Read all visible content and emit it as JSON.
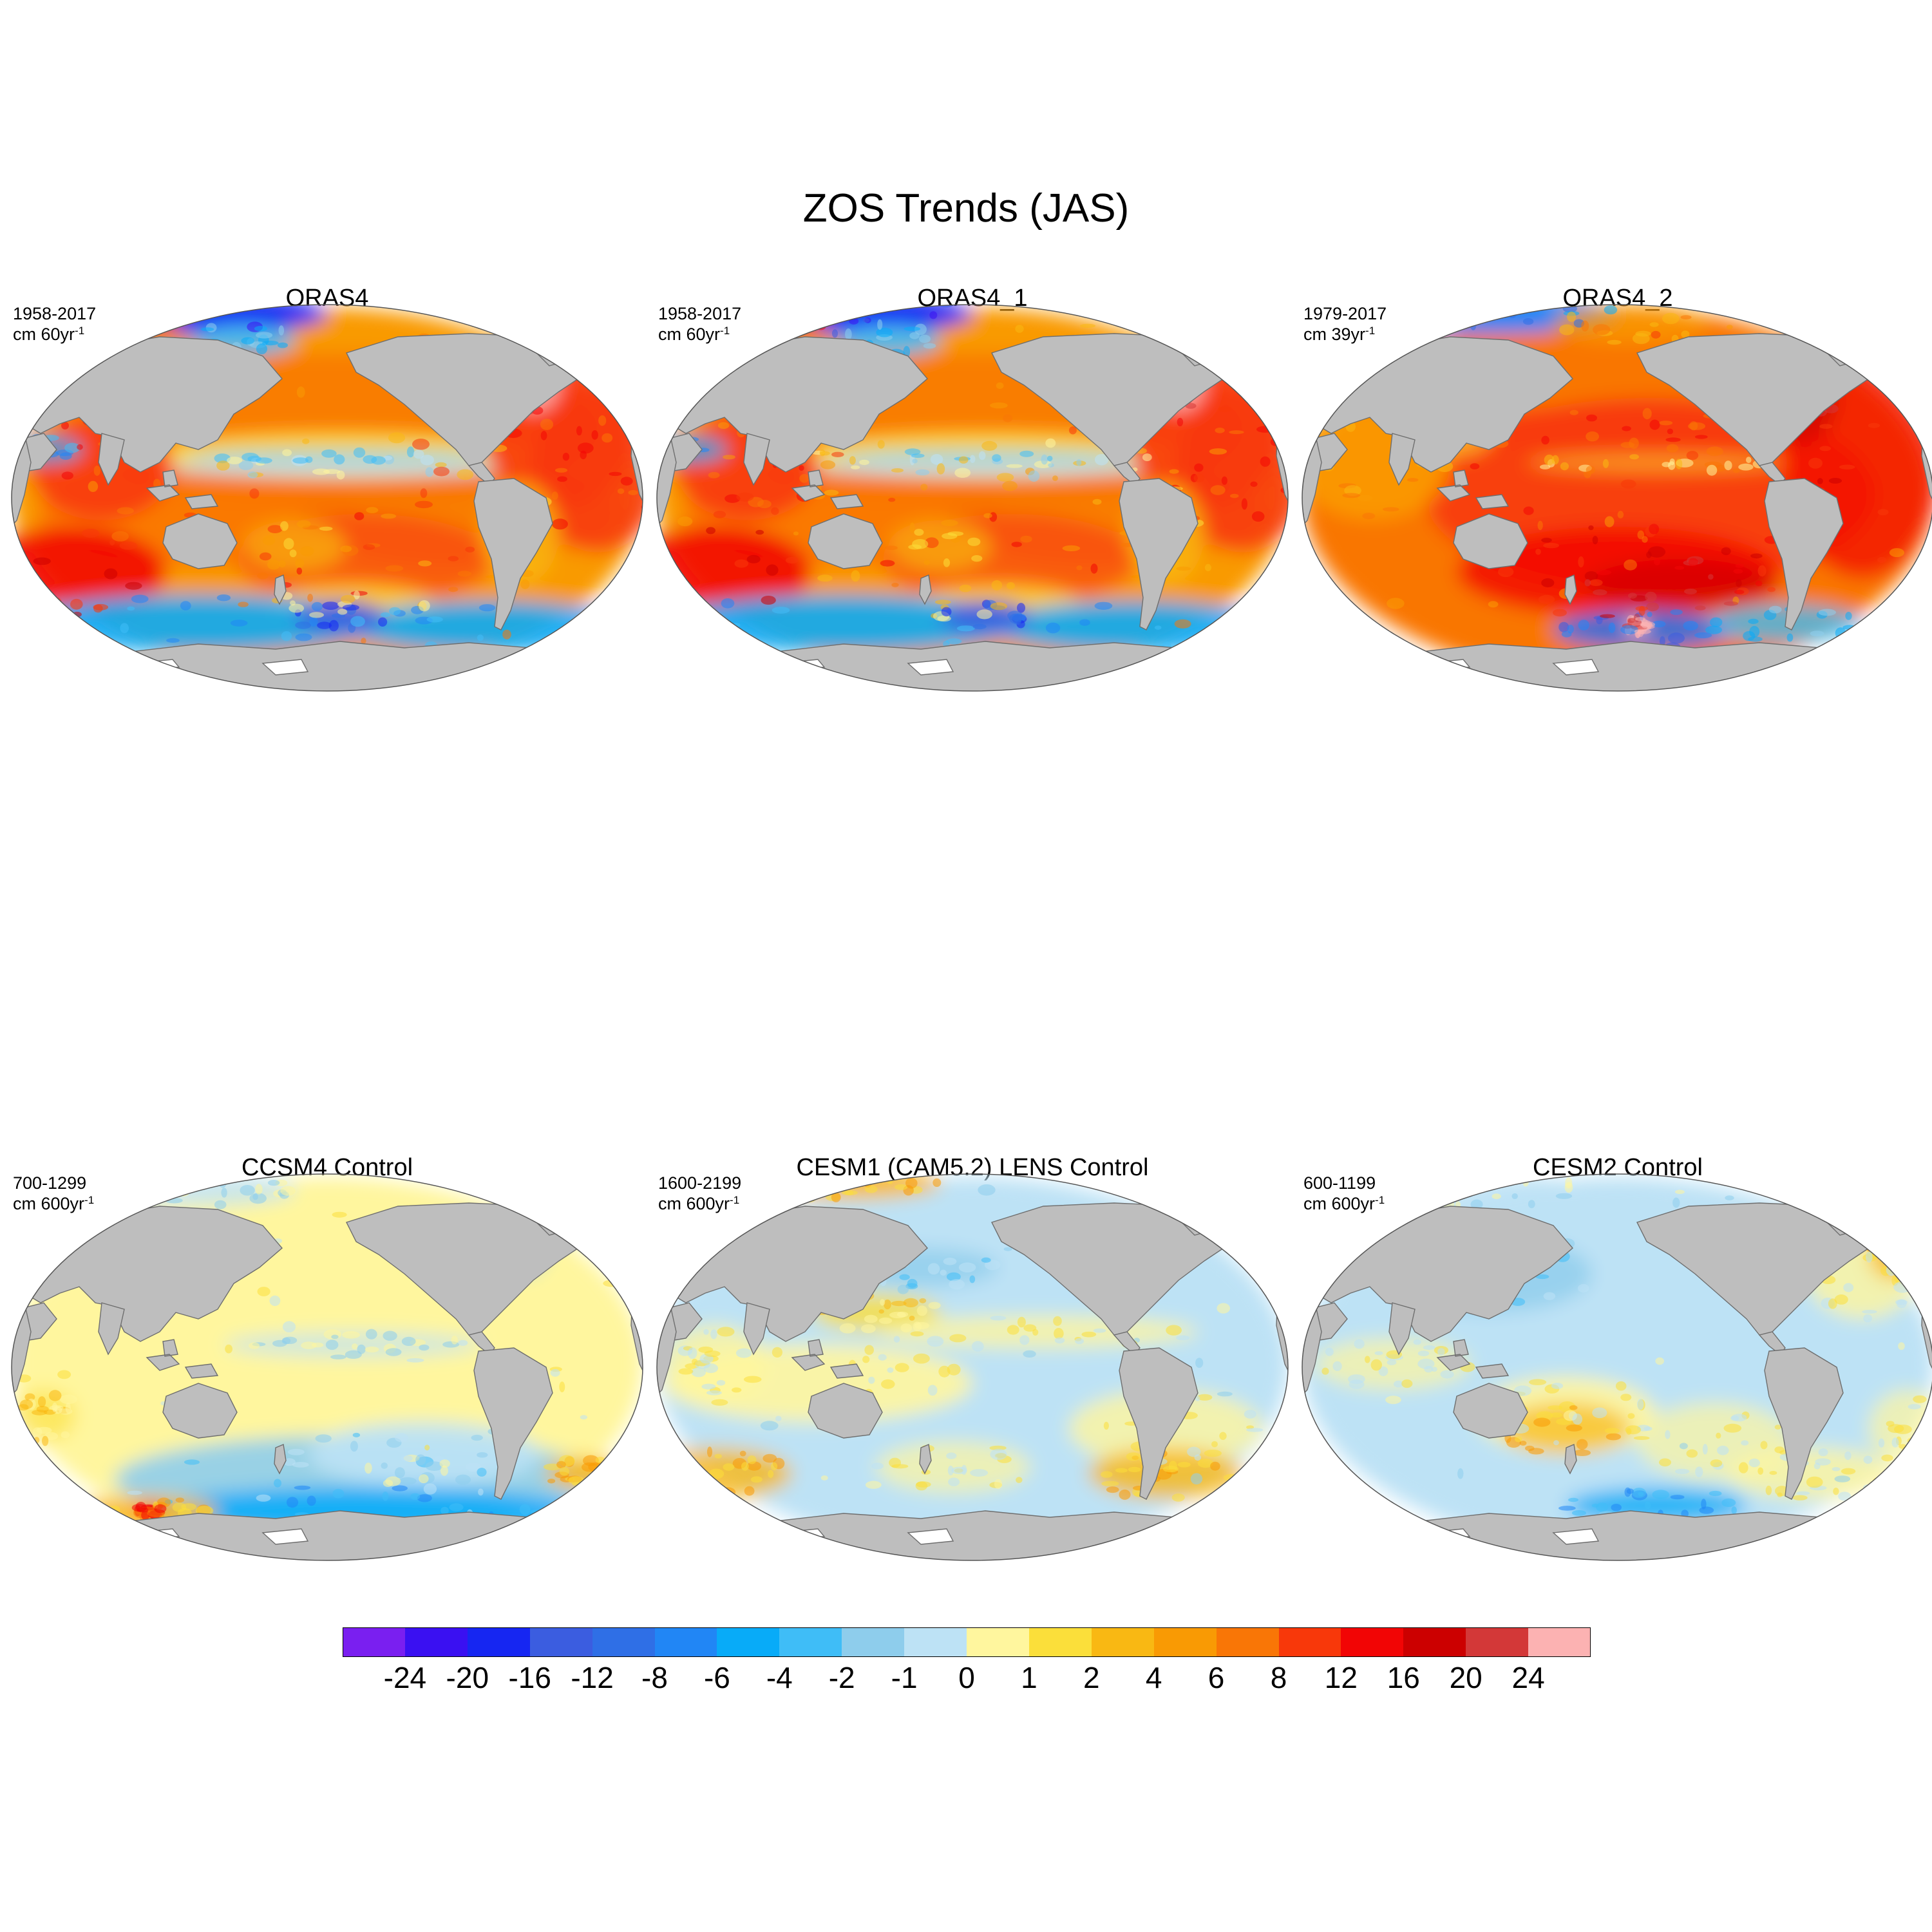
{
  "figure": {
    "title": "ZOS Trends (JAS)"
  },
  "panels": [
    {
      "id": "oras4",
      "title": "ORAS4",
      "period": "1958-2017",
      "unit_base": "cm 60yr",
      "unit_exp": "-1",
      "theme": "warm"
    },
    {
      "id": "oras4_1",
      "title": "ORAS4_1",
      "period": "1958-2017",
      "unit_base": "cm 60yr",
      "unit_exp": "-1",
      "theme": "warm"
    },
    {
      "id": "oras4_2",
      "title": "ORAS4_2",
      "period": "1979-2017",
      "unit_base": "cm 39yr",
      "unit_exp": "-1",
      "theme": "warm2"
    },
    {
      "id": "ccsm4",
      "title": "CCSM4 Control",
      "period": "700-1299",
      "unit_base": "cm 600yr",
      "unit_exp": "-1",
      "theme": "ccsm4"
    },
    {
      "id": "cesm1",
      "title": "CESM1 (CAM5.2) LENS Control",
      "period": "1600-2199",
      "unit_base": "cm 600yr",
      "unit_exp": "-1",
      "theme": "cesm1"
    },
    {
      "id": "cesm2",
      "title": "CESM2 Control",
      "period": "600-1199",
      "unit_base": "cm 600yr",
      "unit_exp": "-1",
      "theme": "cesm2"
    }
  ],
  "colorbar": {
    "colors": [
      "#7a1ff0",
      "#3a10f2",
      "#1626f2",
      "#3b5de0",
      "#2f6fe6",
      "#2186f5",
      "#08abf8",
      "#3fbdf7",
      "#8ecdec",
      "#bde2f5",
      "#fff69e",
      "#fbdf3a",
      "#f9b813",
      "#f99a04",
      "#f97606",
      "#f8380a",
      "#f20505",
      "#cc0000",
      "#d33838",
      "#fcb2b2"
    ],
    "labels": [
      "-24",
      "-20",
      "-16",
      "-12",
      "-8",
      "-6",
      "-4",
      "-2",
      "-1",
      "0",
      "1",
      "2",
      "4",
      "6",
      "8",
      "12",
      "16",
      "20",
      "24"
    ]
  },
  "land_color": "#bebebe"
}
